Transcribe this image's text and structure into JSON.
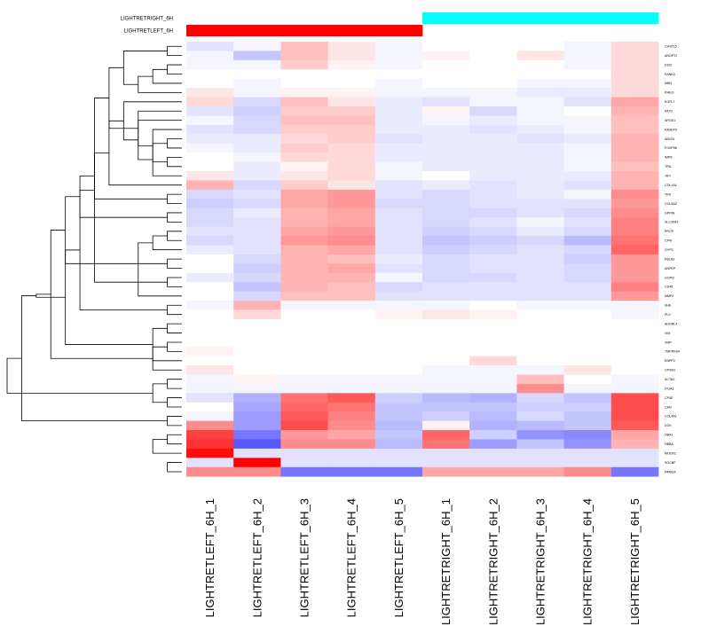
{
  "chart_data": {
    "type": "heatmap",
    "title": "",
    "color_scale": {
      "low": "#3b3bff",
      "mid": "#ffffff",
      "high": "#ff0000",
      "range": [
        -1,
        1
      ]
    },
    "annotation_tracks": [
      {
        "label": "LIGHTRETRIGHT_6H",
        "color": "#00ffff",
        "columns": [
          5,
          6,
          7,
          8,
          9
        ]
      },
      {
        "label": "LIGHTRETLEFT_6H",
        "color": "#ff0000",
        "columns": [
          0,
          1,
          2,
          3,
          4
        ]
      }
    ],
    "columns": [
      "LIGHTRETLEFT_6H_1",
      "LIGHTRETLEFT_6H_2",
      "LIGHTRETLEFT_6H_3",
      "LIGHTRETLEFT_6H_4",
      "LIGHTRETLEFT_6H_5",
      "LIGHTRETRIGHT_6H_1",
      "LIGHTRETRIGHT_6H_2",
      "LIGHTRETRIGHT_6H_3",
      "LIGHTRETRIGHT_6H_4",
      "LIGHTRETRIGHT_6H_5"
    ],
    "rows": [
      "CHST15",
      "ANGPT2",
      "DIO2",
      "KANK3",
      "MBN",
      "RHEO",
      "EGFL7",
      "PAX2",
      "APOD1",
      "RASEF5",
      "ABCIN",
      "FOXP56",
      "IMP6",
      "TRIL",
      "TIPI",
      "COL1A1",
      "TRS",
      "COL6A2",
      "GPRIN",
      "SLC30A3",
      "PRCP",
      "CP4I",
      "GYPC",
      "FBLN3",
      "ANPEP",
      "GOPI2",
      "CD45",
      "MMP2",
      "SHE",
      "PLX",
      "ADGRL4",
      "VIM",
      "VMP",
      "TMPRSS4",
      "ENPP2",
      "CPXM1",
      "ACTA2",
      "ITGA3",
      "CP4E",
      "CAN",
      "COL4A1",
      "DCK",
      "HBA1",
      "HBBA",
      "MOCR2",
      "SOCBP",
      "PAMGA"
    ],
    "values": [
      [
        -0.15,
        -0.05,
        0.25,
        0.1,
        -0.05,
        0.0,
        0.0,
        0.0,
        -0.05,
        0.15
      ],
      [
        -0.05,
        -0.3,
        0.25,
        0.1,
        -0.05,
        0.05,
        0.0,
        0.1,
        -0.05,
        0.15
      ],
      [
        -0.05,
        -0.05,
        0.2,
        0.05,
        -0.05,
        0.0,
        0.0,
        0.0,
        -0.05,
        0.15
      ],
      [
        0.0,
        0.0,
        0.0,
        0.0,
        0.0,
        0.0,
        0.0,
        0.0,
        0.0,
        0.15
      ],
      [
        0.0,
        -0.05,
        0.0,
        0.0,
        -0.05,
        0.0,
        0.0,
        -0.05,
        -0.05,
        0.15
      ],
      [
        0.1,
        -0.05,
        0.05,
        0.05,
        -0.05,
        -0.05,
        -0.05,
        -0.1,
        -0.1,
        0.15
      ],
      [
        0.15,
        -0.2,
        0.25,
        0.1,
        -0.1,
        -0.15,
        -0.05,
        -0.05,
        -0.15,
        0.35
      ],
      [
        -0.15,
        -0.25,
        0.2,
        0.2,
        -0.1,
        0.05,
        -0.2,
        -0.05,
        0.0,
        0.3
      ],
      [
        -0.05,
        -0.2,
        0.25,
        0.25,
        -0.1,
        -0.05,
        -0.1,
        -0.05,
        -0.05,
        0.25
      ],
      [
        -0.15,
        -0.2,
        0.2,
        0.2,
        -0.1,
        -0.1,
        -0.15,
        -0.1,
        -0.05,
        0.25
      ],
      [
        -0.1,
        -0.1,
        0.15,
        0.2,
        -0.15,
        -0.1,
        -0.1,
        -0.15,
        -0.1,
        0.3
      ],
      [
        -0.05,
        -0.1,
        0.2,
        0.15,
        -0.1,
        -0.1,
        -0.1,
        -0.1,
        -0.05,
        0.3
      ],
      [
        0.0,
        -0.05,
        0.15,
        0.15,
        -0.1,
        -0.1,
        -0.1,
        -0.1,
        -0.05,
        0.3
      ],
      [
        0.0,
        -0.1,
        0.05,
        0.15,
        -0.05,
        -0.1,
        -0.1,
        -0.1,
        -0.05,
        0.25
      ],
      [
        0.1,
        -0.1,
        0.1,
        0.15,
        -0.05,
        0.0,
        -0.1,
        -0.1,
        -0.1,
        0.3
      ],
      [
        0.3,
        -0.2,
        0.2,
        0.1,
        -0.15,
        -0.1,
        -0.15,
        -0.1,
        -0.15,
        0.3
      ],
      [
        -0.2,
        -0.15,
        0.35,
        0.4,
        -0.15,
        -0.2,
        -0.15,
        -0.1,
        -0.05,
        0.45
      ],
      [
        -0.25,
        -0.2,
        0.35,
        0.4,
        -0.2,
        -0.2,
        -0.15,
        -0.15,
        -0.15,
        0.4
      ],
      [
        -0.2,
        -0.1,
        0.3,
        0.35,
        -0.15,
        -0.2,
        -0.2,
        -0.15,
        -0.2,
        0.45
      ],
      [
        -0.2,
        -0.15,
        0.3,
        0.35,
        -0.15,
        -0.2,
        -0.15,
        -0.05,
        -0.15,
        0.5
      ],
      [
        -0.15,
        -0.15,
        0.35,
        0.4,
        -0.15,
        -0.25,
        -0.2,
        -0.1,
        -0.2,
        0.5
      ],
      [
        -0.2,
        -0.15,
        0.4,
        0.45,
        -0.15,
        -0.3,
        -0.25,
        -0.2,
        -0.35,
        0.55
      ],
      [
        -0.1,
        -0.15,
        0.3,
        0.35,
        -0.15,
        -0.25,
        -0.2,
        -0.15,
        -0.2,
        0.6
      ],
      [
        0.0,
        -0.2,
        0.3,
        0.25,
        -0.1,
        -0.2,
        -0.15,
        -0.15,
        -0.25,
        0.4
      ],
      [
        0.0,
        -0.25,
        0.3,
        0.35,
        -0.15,
        -0.2,
        -0.15,
        -0.15,
        -0.2,
        0.4
      ],
      [
        -0.1,
        -0.2,
        0.3,
        0.3,
        -0.05,
        -0.2,
        -0.2,
        -0.15,
        -0.2,
        0.4
      ],
      [
        0.0,
        -0.3,
        0.3,
        0.25,
        -0.2,
        -0.15,
        -0.15,
        -0.15,
        -0.15,
        0.5
      ],
      [
        0.0,
        -0.2,
        0.25,
        0.25,
        -0.15,
        -0.15,
        -0.15,
        -0.15,
        -0.15,
        0.4
      ],
      [
        -0.05,
        0.3,
        -0.05,
        -0.05,
        -0.05,
        -0.05,
        0.0,
        -0.05,
        -0.05,
        -0.05
      ],
      [
        0.0,
        0.15,
        0.0,
        0.0,
        0.05,
        0.1,
        0.05,
        0.0,
        0.0,
        -0.05
      ],
      [
        0.0,
        0.0,
        0.0,
        0.0,
        0.0,
        0.0,
        0.0,
        0.0,
        0.0,
        0.0
      ],
      [
        0.0,
        0.0,
        0.0,
        0.0,
        0.0,
        0.0,
        0.0,
        0.0,
        0.0,
        0.0
      ],
      [
        0.0,
        0.0,
        0.0,
        0.0,
        0.0,
        0.0,
        0.0,
        0.0,
        0.0,
        0.0
      ],
      [
        0.05,
        0.0,
        0.0,
        0.0,
        0.0,
        0.0,
        0.0,
        0.0,
        0.0,
        0.0
      ],
      [
        0.0,
        0.0,
        0.0,
        0.0,
        0.0,
        0.0,
        0.15,
        0.0,
        0.0,
        0.0
      ],
      [
        0.1,
        0.0,
        0.0,
        0.0,
        0.0,
        -0.05,
        -0.05,
        -0.05,
        0.1,
        0.0
      ],
      [
        -0.05,
        0.05,
        -0.05,
        -0.05,
        -0.05,
        -0.05,
        -0.05,
        0.25,
        0.0,
        -0.05
      ],
      [
        -0.05,
        -0.05,
        -0.05,
        -0.05,
        -0.05,
        -0.05,
        -0.05,
        0.45,
        -0.05,
        -0.05
      ],
      [
        -0.15,
        -0.4,
        0.55,
        0.65,
        -0.25,
        -0.35,
        -0.4,
        -0.2,
        -0.3,
        0.7
      ],
      [
        0.0,
        -0.45,
        0.6,
        0.55,
        -0.3,
        -0.3,
        -0.3,
        -0.25,
        -0.25,
        0.7
      ],
      [
        -0.05,
        -0.5,
        0.65,
        0.5,
        -0.3,
        -0.25,
        -0.35,
        -0.2,
        -0.3,
        0.7
      ],
      [
        0.45,
        -0.5,
        0.7,
        0.45,
        -0.35,
        0.05,
        -0.4,
        -0.35,
        -0.3,
        0.65
      ],
      [
        0.75,
        -0.7,
        0.4,
        0.35,
        -0.3,
        0.6,
        -0.25,
        -0.55,
        -0.6,
        0.35
      ],
      [
        0.8,
        -0.85,
        0.45,
        0.45,
        -0.35,
        0.55,
        -0.5,
        -0.3,
        -0.55,
        0.3
      ],
      [
        0.95,
        -0.15,
        -0.15,
        -0.15,
        -0.15,
        -0.15,
        -0.15,
        -0.15,
        -0.15,
        -0.15
      ],
      [
        -0.15,
        1.0,
        -0.15,
        -0.15,
        -0.15,
        -0.15,
        -0.15,
        -0.15,
        -0.15,
        -0.15
      ],
      [
        0.45,
        0.45,
        -0.7,
        -0.7,
        -0.7,
        0.35,
        0.35,
        0.35,
        0.45,
        -0.7
      ]
    ],
    "row_dendrogram": [
      [
        0,
        1
      ],
      [
        2,
        3
      ],
      [
        -2,
        4
      ],
      [
        -3,
        5
      ],
      [
        -1,
        -4
      ],
      [
        10,
        11
      ],
      [
        12,
        13
      ],
      [
        -6,
        14
      ],
      [
        9,
        -7
      ],
      [
        8,
        -8
      ],
      [
        7,
        -9
      ],
      [
        6,
        -10
      ],
      [
        -5,
        -11
      ],
      [
        15,
        -12
      ],
      [
        16,
        17
      ],
      [
        18,
        19
      ],
      [
        -14,
        -15
      ],
      [
        20,
        21
      ],
      [
        -16,
        -17
      ],
      [
        22,
        -18
      ],
      [
        23,
        24
      ],
      [
        25,
        26
      ],
      [
        -20,
        27
      ],
      [
        -19,
        -21
      ],
      [
        -13,
        -22
      ],
      [
        28,
        29
      ],
      [
        30,
        31
      ],
      [
        32,
        33
      ],
      [
        -25,
        -26
      ],
      [
        34,
        -27
      ],
      [
        -28,
        35
      ],
      [
        36,
        37
      ],
      [
        -29,
        -30
      ],
      [
        -24,
        -31
      ],
      [
        38,
        39
      ],
      [
        40,
        41
      ],
      [
        -33,
        -34
      ],
      [
        -32,
        -35
      ],
      [
        42,
        43
      ],
      [
        -36,
        -37
      ],
      [
        45,
        46
      ],
      [
        44,
        -39
      ],
      [
        -38,
        -40
      ]
    ]
  }
}
